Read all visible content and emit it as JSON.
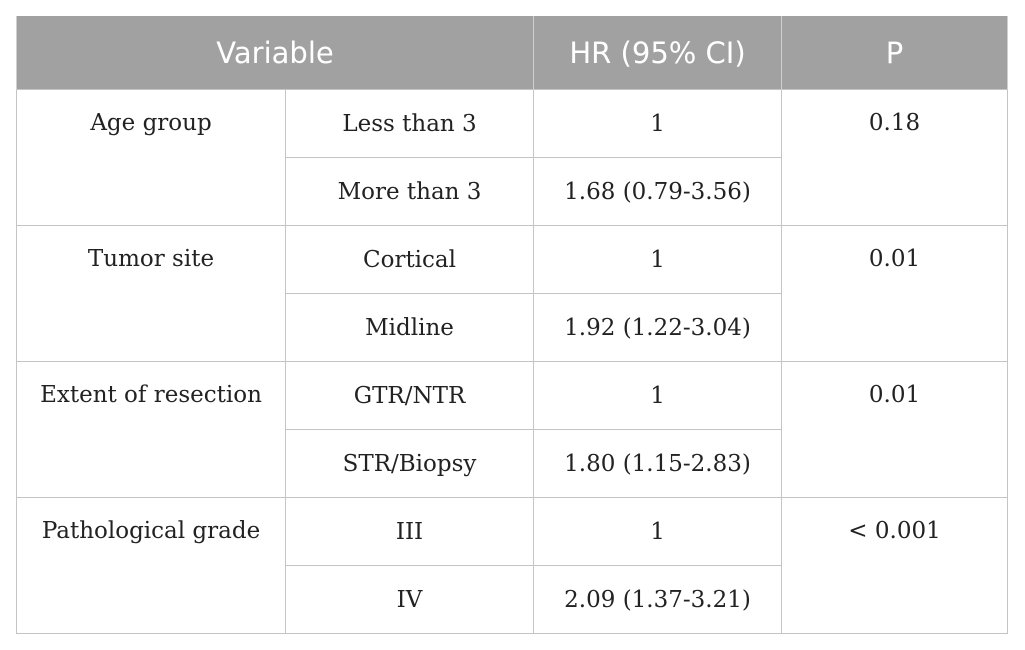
{
  "header": {
    "variable": "Variable",
    "hr": "HR (95% CI)",
    "p": "P"
  },
  "rows": [
    {
      "variable": "Age group",
      "levels": [
        {
          "label": "Less than 3",
          "hr": "1"
        },
        {
          "label": "More than 3",
          "hr": "1.68 (0.79-3.56)"
        }
      ],
      "p": "0.18"
    },
    {
      "variable": "Tumor site",
      "levels": [
        {
          "label": "Cortical",
          "hr": "1"
        },
        {
          "label": "Midline",
          "hr": "1.92 (1.22-3.04)"
        }
      ],
      "p": "0.01"
    },
    {
      "variable": "Extent of resection",
      "levels": [
        {
          "label": "GTR/NTR",
          "hr": "1"
        },
        {
          "label": "STR/Biopsy",
          "hr": "1.80 (1.15-2.83)"
        }
      ],
      "p": "0.01"
    },
    {
      "variable": "Pathological grade",
      "levels": [
        {
          "label": "III",
          "hr": "1"
        },
        {
          "label": "IV",
          "hr": "2.09 (1.37-3.21)"
        }
      ],
      "p": "< 0.001"
    }
  ]
}
